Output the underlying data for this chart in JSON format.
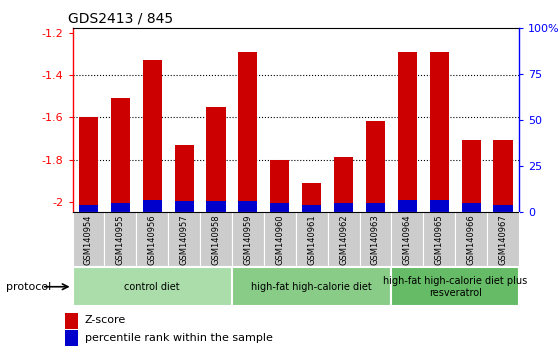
{
  "title": "GDS2413 / 845",
  "samples": [
    "GSM140954",
    "GSM140955",
    "GSM140956",
    "GSM140957",
    "GSM140958",
    "GSM140959",
    "GSM140960",
    "GSM140961",
    "GSM140962",
    "GSM140963",
    "GSM140964",
    "GSM140965",
    "GSM140966",
    "GSM140967"
  ],
  "zscore": [
    -1.6,
    -1.51,
    -1.33,
    -1.73,
    -1.55,
    -1.29,
    -1.8,
    -1.91,
    -1.79,
    -1.62,
    -1.29,
    -1.29,
    -1.71,
    -1.71
  ],
  "percentile": [
    4.0,
    5.0,
    7.0,
    6.0,
    6.0,
    6.0,
    5.0,
    4.0,
    5.0,
    5.0,
    7.0,
    7.0,
    5.0,
    4.0
  ],
  "red_color": "#CC0000",
  "blue_color": "#0000CC",
  "ylim_left": [
    -2.05,
    -1.18
  ],
  "ylim_right": [
    0,
    100
  ],
  "yticks_left": [
    -2.0,
    -1.8,
    -1.6,
    -1.4,
    -1.2
  ],
  "yticks_right": [
    0,
    25,
    50,
    75,
    100
  ],
  "ytick_labels_left": [
    "-2",
    "-1.8",
    "-1.6",
    "-1.4",
    "-1.2"
  ],
  "ytick_labels_right": [
    "0",
    "25",
    "50",
    "75",
    "100%"
  ],
  "groups": [
    {
      "label": "control diet",
      "start": 0,
      "end": 4,
      "color": "#AADDAA"
    },
    {
      "label": "high-fat high-calorie diet",
      "start": 5,
      "end": 9,
      "color": "#88CC88"
    },
    {
      "label": "high-fat high-calorie diet plus\nresveratrol",
      "start": 10,
      "end": 13,
      "color": "#66BB66"
    }
  ],
  "legend_zscore": "Z-score",
  "legend_percentile": "percentile rank within the sample",
  "protocol_label": "protocol",
  "bar_width": 0.6,
  "grid_yticks": [
    -1.8,
    -1.6,
    -1.4
  ],
  "sample_bg": "#CCCCCC",
  "fig_width": 5.58,
  "fig_height": 3.54
}
